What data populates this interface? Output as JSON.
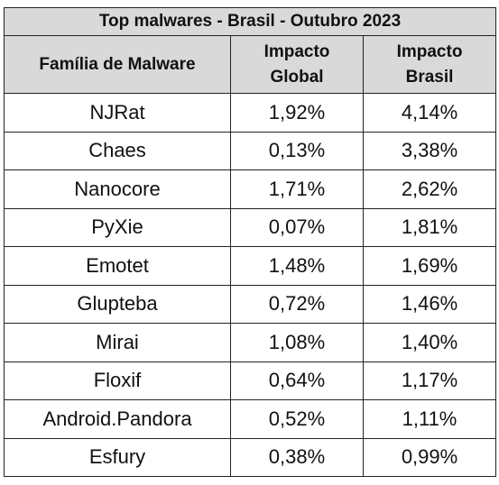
{
  "table": {
    "title": "Top malwares - Brasil - Outubro 2023",
    "headers": {
      "family": "Família de Malware",
      "global_line1": "Impacto",
      "global_line2": "Global",
      "brasil_line1": "Impacto",
      "brasil_line2": "Brasil"
    },
    "rows": [
      {
        "family": "NJRat",
        "global": "1,92%",
        "brasil": "4,14%"
      },
      {
        "family": "Chaes",
        "global": "0,13%",
        "brasil": "3,38%"
      },
      {
        "family": "Nanocore",
        "global": "1,71%",
        "brasil": "2,62%"
      },
      {
        "family": "PyXie",
        "global": "0,07%",
        "brasil": "1,81%"
      },
      {
        "family": "Emotet",
        "global": "1,48%",
        "brasil": "1,69%"
      },
      {
        "family": "Glupteba",
        "global": "0,72%",
        "brasil": "1,46%"
      },
      {
        "family": "Mirai",
        "global": "1,08%",
        "brasil": "1,40%"
      },
      {
        "family": "Floxif",
        "global": "0,64%",
        "brasil": "1,17%"
      },
      {
        "family": "Android.Pandora",
        "global": "0,52%",
        "brasil": "1,11%"
      },
      {
        "family": "Esfury",
        "global": "0,38%",
        "brasil": "0,99%"
      }
    ]
  }
}
